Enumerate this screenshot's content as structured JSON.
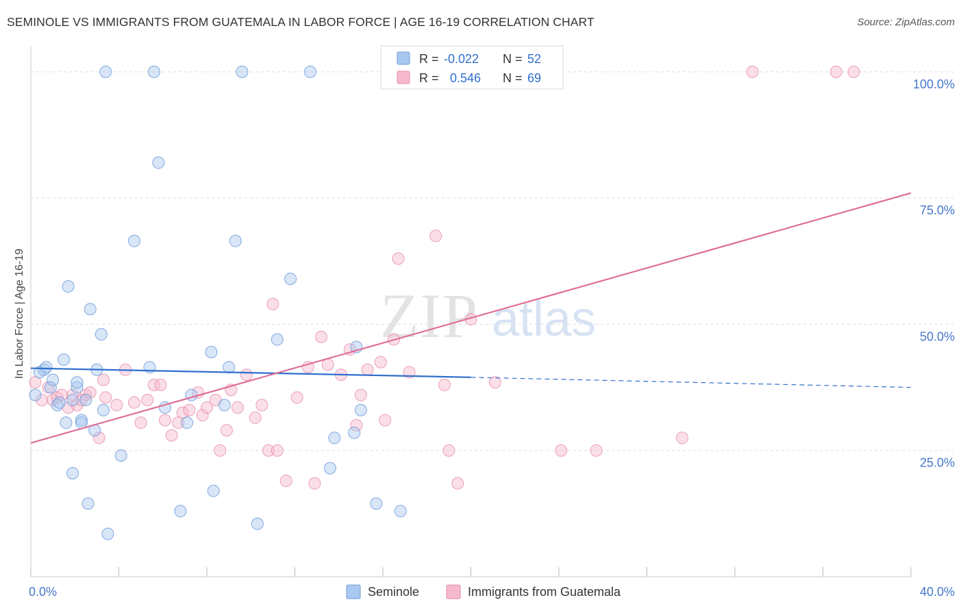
{
  "title": "SEMINOLE VS IMMIGRANTS FROM GUATEMALA IN LABOR FORCE | AGE 16-19 CORRELATION CHART",
  "source": "Source: ZipAtlas.com",
  "watermark": {
    "zip": "ZIP",
    "atlas": "atlas"
  },
  "colors": {
    "seminole": "#a9c8f0",
    "seminole_stroke": "#6f9bd8",
    "seminole_line": "#2f6fcc",
    "guatemala": "#f6b8cc",
    "guatemala_stroke": "#e58aa8",
    "guatemala_line": "#e06e96",
    "axis_label": "#4477cc"
  },
  "legend": {
    "seminole": {
      "r_label": "R =",
      "r_value": "-0.022",
      "n_label": "N =",
      "n_value": "52"
    },
    "guatemala": {
      "r_label": "R =",
      "r_value": "0.546",
      "n_label": "N =",
      "n_value": "69"
    }
  },
  "bottom_legend": {
    "seminole": "Seminole",
    "guatemala": "Immigrants from Guatemala"
  },
  "chart_data": {
    "type": "scatter",
    "ylabel": "In Labor Force | Age 16-19",
    "x_tick_labels": [
      "0.0%",
      "40.0%"
    ],
    "y_tick_labels": [
      "25.0%",
      "50.0%",
      "75.0%",
      "100.0%"
    ],
    "xlim": [
      0,
      40
    ],
    "ylim": [
      0,
      105
    ],
    "grid": true,
    "legend_position": "top-center",
    "series": [
      {
        "name": "Seminole",
        "r": -0.022,
        "n": 52,
        "trend": {
          "x0": 0,
          "y0": 41.3,
          "x1": 20,
          "y1": 39.5,
          "dash_to_x": 40,
          "dash_to_y": 37.5
        },
        "points": [
          [
            0.2,
            36
          ],
          [
            0.4,
            40.5
          ],
          [
            0.6,
            41
          ],
          [
            0.7,
            41.5
          ],
          [
            0.9,
            37.5
          ],
          [
            1.0,
            39
          ],
          [
            1.2,
            34
          ],
          [
            1.3,
            34.5
          ],
          [
            1.5,
            43
          ],
          [
            1.6,
            30.5
          ],
          [
            1.7,
            57.5
          ],
          [
            1.9,
            35
          ],
          [
            1.9,
            20.5
          ],
          [
            2.1,
            37.5
          ],
          [
            2.3,
            31
          ],
          [
            2.3,
            30.5
          ],
          [
            2.5,
            35
          ],
          [
            2.6,
            14.5
          ],
          [
            2.7,
            53
          ],
          [
            2.9,
            29
          ],
          [
            3.0,
            41
          ],
          [
            3.2,
            48
          ],
          [
            3.3,
            33
          ],
          [
            3.4,
            100
          ],
          [
            3.5,
            8.5
          ],
          [
            4.1,
            24
          ],
          [
            4.7,
            66.5
          ],
          [
            5.4,
            41.5
          ],
          [
            5.6,
            100
          ],
          [
            5.8,
            82
          ],
          [
            6.8,
            13
          ],
          [
            7.1,
            30.5
          ],
          [
            7.3,
            36
          ],
          [
            8.2,
            44.5
          ],
          [
            8.3,
            17
          ],
          [
            8.8,
            34
          ],
          [
            9.0,
            41.5
          ],
          [
            9.3,
            66.5
          ],
          [
            9.6,
            100
          ],
          [
            10.3,
            10.5
          ],
          [
            11.2,
            47
          ],
          [
            11.8,
            59
          ],
          [
            12.7,
            100
          ],
          [
            13.8,
            27.5
          ],
          [
            13.6,
            21.5
          ],
          [
            14.7,
            28.5
          ],
          [
            14.8,
            45.5
          ],
          [
            15.0,
            33
          ],
          [
            15.7,
            14.5
          ],
          [
            16.8,
            13
          ],
          [
            2.1,
            38.5
          ],
          [
            6.1,
            33.5
          ]
        ]
      },
      {
        "name": "Immigrants from Guatemala",
        "r": 0.546,
        "n": 69,
        "trend": {
          "x0": 0,
          "y0": 26.5,
          "x1": 40,
          "y1": 76
        },
        "points": [
          [
            0.2,
            38.5
          ],
          [
            0.5,
            35
          ],
          [
            0.8,
            37.5
          ],
          [
            1.0,
            35
          ],
          [
            1.2,
            35.5
          ],
          [
            1.4,
            36
          ],
          [
            1.7,
            33.5
          ],
          [
            1.9,
            36
          ],
          [
            2.1,
            34
          ],
          [
            2.3,
            35
          ],
          [
            2.5,
            36
          ],
          [
            2.7,
            36.5
          ],
          [
            3.1,
            27.5
          ],
          [
            3.3,
            39
          ],
          [
            3.4,
            35.5
          ],
          [
            3.9,
            34
          ],
          [
            4.3,
            41
          ],
          [
            4.7,
            34.5
          ],
          [
            5.0,
            30.5
          ],
          [
            5.3,
            35
          ],
          [
            5.6,
            38
          ],
          [
            5.9,
            38
          ],
          [
            6.1,
            31
          ],
          [
            6.4,
            28
          ],
          [
            6.7,
            30.5
          ],
          [
            6.9,
            32.5
          ],
          [
            7.2,
            33
          ],
          [
            7.6,
            36.5
          ],
          [
            7.8,
            32
          ],
          [
            8.0,
            33.5
          ],
          [
            8.4,
            35
          ],
          [
            8.6,
            25
          ],
          [
            8.9,
            29
          ],
          [
            9.1,
            37
          ],
          [
            9.4,
            33.5
          ],
          [
            9.8,
            40
          ],
          [
            10.2,
            31.5
          ],
          [
            10.5,
            34
          ],
          [
            10.8,
            25
          ],
          [
            11.0,
            54
          ],
          [
            11.2,
            25
          ],
          [
            11.6,
            19
          ],
          [
            12.1,
            35.5
          ],
          [
            12.6,
            41.5
          ],
          [
            12.9,
            18.5
          ],
          [
            13.2,
            47.5
          ],
          [
            13.5,
            42
          ],
          [
            14.1,
            40
          ],
          [
            14.5,
            45
          ],
          [
            14.8,
            30
          ],
          [
            15.0,
            36
          ],
          [
            15.3,
            41
          ],
          [
            15.9,
            42.5
          ],
          [
            16.1,
            31
          ],
          [
            16.5,
            47
          ],
          [
            16.7,
            63
          ],
          [
            17.2,
            40.5
          ],
          [
            18.4,
            67.5
          ],
          [
            18.8,
            38
          ],
          [
            19.0,
            25
          ],
          [
            19.4,
            18.5
          ],
          [
            20.0,
            51
          ],
          [
            21.1,
            38.5
          ],
          [
            24.1,
            25
          ],
          [
            25.7,
            25
          ],
          [
            29.6,
            27.5
          ],
          [
            32.8,
            100
          ],
          [
            36.6,
            100
          ],
          [
            37.4,
            100
          ]
        ]
      }
    ]
  }
}
